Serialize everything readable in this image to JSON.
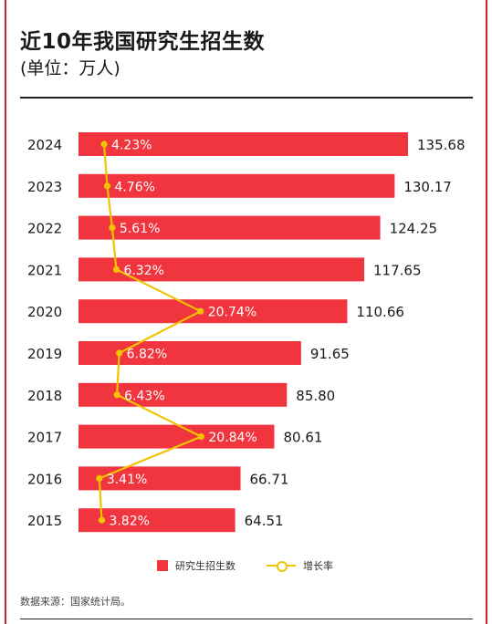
{
  "title": "近10年我国研究生招生数",
  "subtitle": "(单位：万人)",
  "source": "数据来源：国家统计局。",
  "colors": {
    "bar": "#f0353f",
    "line": "#f2c400",
    "frame": "#c9242b"
  },
  "chart_data": {
    "type": "bar",
    "orientation": "horizontal",
    "categories": [
      "2024",
      "2023",
      "2022",
      "2021",
      "2020",
      "2019",
      "2018",
      "2017",
      "2016",
      "2015"
    ],
    "series": [
      {
        "name": "研究生招生数",
        "type": "bar",
        "values": [
          135.68,
          130.17,
          124.25,
          117.65,
          110.66,
          91.65,
          85.8,
          80.61,
          66.71,
          64.51
        ],
        "labels": [
          "135.68",
          "130.17",
          "124.25",
          "117.65",
          "110.66",
          "91.65",
          "85.80",
          "80.61",
          "66.71",
          "64.51"
        ]
      },
      {
        "name": "增长率",
        "type": "line",
        "values": [
          4.23,
          4.76,
          5.61,
          6.32,
          20.74,
          6.82,
          6.43,
          20.84,
          3.41,
          3.82
        ],
        "labels": [
          "4.23%",
          "4.76%",
          "5.61%",
          "6.32%",
          "20.74%",
          "6.82%",
          "6.43%",
          "20.84%",
          "3.41%",
          "3.82%"
        ]
      }
    ],
    "legend": "bottom-center"
  }
}
